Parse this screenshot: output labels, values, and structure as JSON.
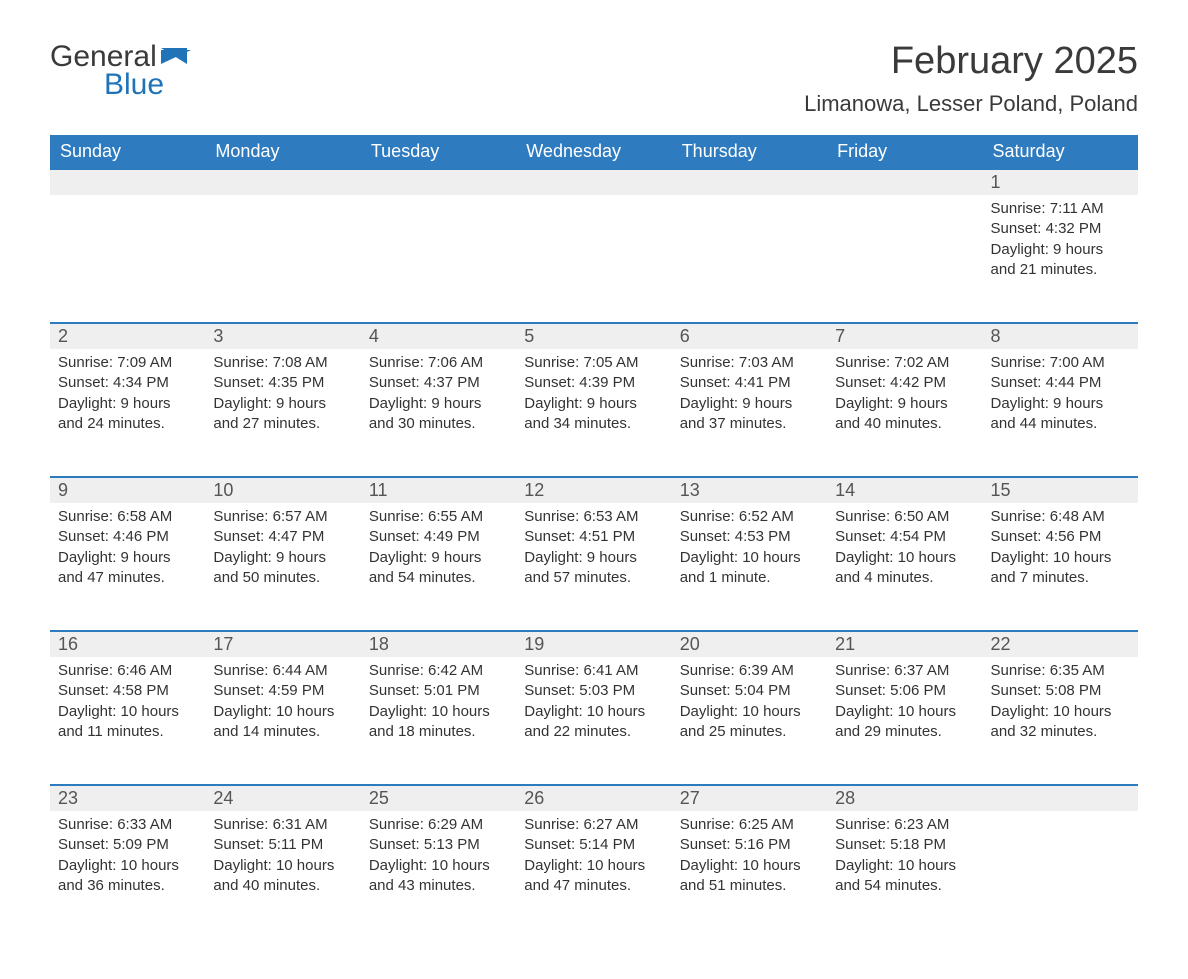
{
  "brand": {
    "part1": "General",
    "part2": "Blue",
    "accent_color": "#2173b8"
  },
  "title": "February 2025",
  "location": "Limanowa, Lesser Poland, Poland",
  "colors": {
    "header_bg": "#2f7bbf",
    "header_text": "#ffffff",
    "daynum_bg": "#efefef",
    "row_border": "#2f7bbf",
    "body_text": "#333333",
    "title_text": "#3a3a3a",
    "page_bg": "#ffffff"
  },
  "columns": [
    "Sunday",
    "Monday",
    "Tuesday",
    "Wednesday",
    "Thursday",
    "Friday",
    "Saturday"
  ],
  "weeks": [
    [
      null,
      null,
      null,
      null,
      null,
      null,
      {
        "day": "1",
        "sunrise": "Sunrise: 7:11 AM",
        "sunset": "Sunset: 4:32 PM",
        "daylight": "Daylight: 9 hours and 21 minutes."
      }
    ],
    [
      {
        "day": "2",
        "sunrise": "Sunrise: 7:09 AM",
        "sunset": "Sunset: 4:34 PM",
        "daylight": "Daylight: 9 hours and 24 minutes."
      },
      {
        "day": "3",
        "sunrise": "Sunrise: 7:08 AM",
        "sunset": "Sunset: 4:35 PM",
        "daylight": "Daylight: 9 hours and 27 minutes."
      },
      {
        "day": "4",
        "sunrise": "Sunrise: 7:06 AM",
        "sunset": "Sunset: 4:37 PM",
        "daylight": "Daylight: 9 hours and 30 minutes."
      },
      {
        "day": "5",
        "sunrise": "Sunrise: 7:05 AM",
        "sunset": "Sunset: 4:39 PM",
        "daylight": "Daylight: 9 hours and 34 minutes."
      },
      {
        "day": "6",
        "sunrise": "Sunrise: 7:03 AM",
        "sunset": "Sunset: 4:41 PM",
        "daylight": "Daylight: 9 hours and 37 minutes."
      },
      {
        "day": "7",
        "sunrise": "Sunrise: 7:02 AM",
        "sunset": "Sunset: 4:42 PM",
        "daylight": "Daylight: 9 hours and 40 minutes."
      },
      {
        "day": "8",
        "sunrise": "Sunrise: 7:00 AM",
        "sunset": "Sunset: 4:44 PM",
        "daylight": "Daylight: 9 hours and 44 minutes."
      }
    ],
    [
      {
        "day": "9",
        "sunrise": "Sunrise: 6:58 AM",
        "sunset": "Sunset: 4:46 PM",
        "daylight": "Daylight: 9 hours and 47 minutes."
      },
      {
        "day": "10",
        "sunrise": "Sunrise: 6:57 AM",
        "sunset": "Sunset: 4:47 PM",
        "daylight": "Daylight: 9 hours and 50 minutes."
      },
      {
        "day": "11",
        "sunrise": "Sunrise: 6:55 AM",
        "sunset": "Sunset: 4:49 PM",
        "daylight": "Daylight: 9 hours and 54 minutes."
      },
      {
        "day": "12",
        "sunrise": "Sunrise: 6:53 AM",
        "sunset": "Sunset: 4:51 PM",
        "daylight": "Daylight: 9 hours and 57 minutes."
      },
      {
        "day": "13",
        "sunrise": "Sunrise: 6:52 AM",
        "sunset": "Sunset: 4:53 PM",
        "daylight": "Daylight: 10 hours and 1 minute."
      },
      {
        "day": "14",
        "sunrise": "Sunrise: 6:50 AM",
        "sunset": "Sunset: 4:54 PM",
        "daylight": "Daylight: 10 hours and 4 minutes."
      },
      {
        "day": "15",
        "sunrise": "Sunrise: 6:48 AM",
        "sunset": "Sunset: 4:56 PM",
        "daylight": "Daylight: 10 hours and 7 minutes."
      }
    ],
    [
      {
        "day": "16",
        "sunrise": "Sunrise: 6:46 AM",
        "sunset": "Sunset: 4:58 PM",
        "daylight": "Daylight: 10 hours and 11 minutes."
      },
      {
        "day": "17",
        "sunrise": "Sunrise: 6:44 AM",
        "sunset": "Sunset: 4:59 PM",
        "daylight": "Daylight: 10 hours and 14 minutes."
      },
      {
        "day": "18",
        "sunrise": "Sunrise: 6:42 AM",
        "sunset": "Sunset: 5:01 PM",
        "daylight": "Daylight: 10 hours and 18 minutes."
      },
      {
        "day": "19",
        "sunrise": "Sunrise: 6:41 AM",
        "sunset": "Sunset: 5:03 PM",
        "daylight": "Daylight: 10 hours and 22 minutes."
      },
      {
        "day": "20",
        "sunrise": "Sunrise: 6:39 AM",
        "sunset": "Sunset: 5:04 PM",
        "daylight": "Daylight: 10 hours and 25 minutes."
      },
      {
        "day": "21",
        "sunrise": "Sunrise: 6:37 AM",
        "sunset": "Sunset: 5:06 PM",
        "daylight": "Daylight: 10 hours and 29 minutes."
      },
      {
        "day": "22",
        "sunrise": "Sunrise: 6:35 AM",
        "sunset": "Sunset: 5:08 PM",
        "daylight": "Daylight: 10 hours and 32 minutes."
      }
    ],
    [
      {
        "day": "23",
        "sunrise": "Sunrise: 6:33 AM",
        "sunset": "Sunset: 5:09 PM",
        "daylight": "Daylight: 10 hours and 36 minutes."
      },
      {
        "day": "24",
        "sunrise": "Sunrise: 6:31 AM",
        "sunset": "Sunset: 5:11 PM",
        "daylight": "Daylight: 10 hours and 40 minutes."
      },
      {
        "day": "25",
        "sunrise": "Sunrise: 6:29 AM",
        "sunset": "Sunset: 5:13 PM",
        "daylight": "Daylight: 10 hours and 43 minutes."
      },
      {
        "day": "26",
        "sunrise": "Sunrise: 6:27 AM",
        "sunset": "Sunset: 5:14 PM",
        "daylight": "Daylight: 10 hours and 47 minutes."
      },
      {
        "day": "27",
        "sunrise": "Sunrise: 6:25 AM",
        "sunset": "Sunset: 5:16 PM",
        "daylight": "Daylight: 10 hours and 51 minutes."
      },
      {
        "day": "28",
        "sunrise": "Sunrise: 6:23 AM",
        "sunset": "Sunset: 5:18 PM",
        "daylight": "Daylight: 10 hours and 54 minutes."
      },
      null
    ]
  ]
}
